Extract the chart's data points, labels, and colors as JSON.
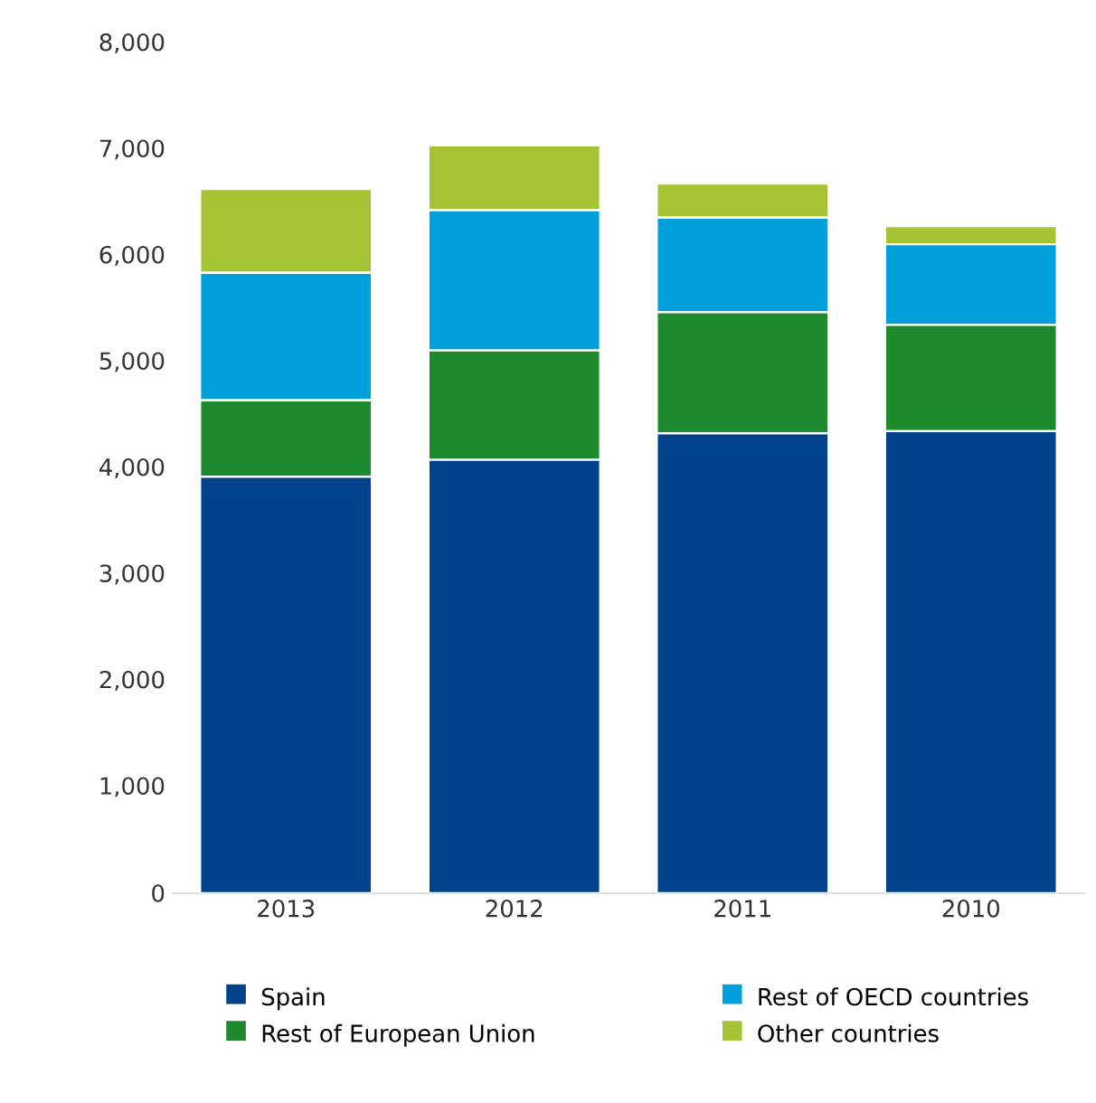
{
  "chart_data": {
    "type": "bar",
    "stacked": true,
    "categories": [
      "2013",
      "2012",
      "2011",
      "2010"
    ],
    "series": [
      {
        "name": "Spain",
        "color": "#00438c",
        "values": [
          3920,
          4080,
          4330,
          4350
        ]
      },
      {
        "name": "Rest of European Union",
        "color": "#1e8a2e",
        "values": [
          720,
          1030,
          1140,
          1000
        ]
      },
      {
        "name": "Rest of OECD countries",
        "color": "#00a0dc",
        "values": [
          1200,
          1320,
          890,
          760
        ]
      },
      {
        "name": "Other countries",
        "color": "#a5c332",
        "values": [
          790,
          610,
          320,
          170
        ]
      }
    ],
    "ylim": [
      0,
      8000
    ],
    "yticks": [
      {
        "value": 0,
        "label": "0"
      },
      {
        "value": 1000,
        "label": "1,000"
      },
      {
        "value": 2000,
        "label": "2,000"
      },
      {
        "value": 3000,
        "label": "3,000"
      },
      {
        "value": 4000,
        "label": "4,000"
      },
      {
        "value": 5000,
        "label": "5,000"
      },
      {
        "value": 6000,
        "label": "6,000"
      },
      {
        "value": 7000,
        "label": "7,000"
      },
      {
        "value": 8000,
        "label": "8,000"
      }
    ],
    "grid": false,
    "legend": "bottom"
  }
}
